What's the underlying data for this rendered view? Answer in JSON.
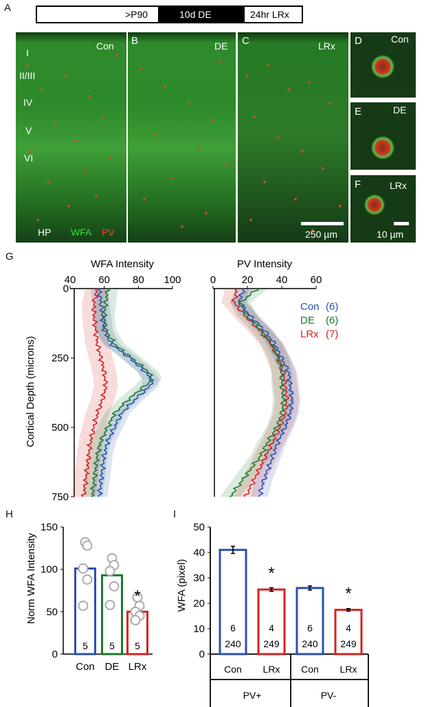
{
  "panel_labels": {
    "a": "A",
    "b": "B",
    "c": "C",
    "d": "D",
    "e": "E",
    "f": "F",
    "g": "G",
    "h": "H",
    "i": "I"
  },
  "timeline": {
    "p90": ">P90",
    "de": "10d DE",
    "lrx": "24hr LRx"
  },
  "micro": {
    "a_corner": "Con",
    "b_corner": "DE",
    "c_corner": "LRx",
    "layers": [
      "I",
      "II/III",
      "IV",
      "V",
      "VI"
    ],
    "hp": "HP",
    "wfa": "WFA",
    "pv": "PV",
    "scale_big": "250 µm",
    "scale_small": "10 µm",
    "d_corner": "Con",
    "e_corner": "DE",
    "f_corner": "LRx"
  },
  "colors": {
    "con": "#2a4fb4",
    "de": "#1a7a2c",
    "lrx": "#d62020",
    "wfa": "#22bb22",
    "pv": "#d62020"
  },
  "chart_data": [
    {
      "type": "line",
      "id": "wfa_profile",
      "title": "WFA Intensity",
      "ylabel": "Cortical Depth (microns)",
      "xlim": [
        40,
        100
      ],
      "xticks": [
        "40",
        "60",
        "80",
        "100"
      ],
      "ylim": [
        0,
        750
      ],
      "yticks": [
        "0",
        "250",
        "500",
        "750"
      ],
      "y_axis_inverted": true,
      "series": [
        {
          "name": "Con",
          "depth": [
            0,
            50,
            100,
            150,
            200,
            250,
            300,
            330,
            350,
            400,
            450,
            500,
            550,
            600,
            650,
            700,
            750
          ],
          "values": [
            57,
            58,
            59,
            60,
            64,
            75,
            84,
            88,
            87,
            78,
            70,
            66,
            62,
            60,
            59,
            58,
            57
          ]
        },
        {
          "name": "DE",
          "depth": [
            0,
            50,
            100,
            150,
            200,
            250,
            300,
            330,
            350,
            400,
            450,
            500,
            550,
            600,
            650,
            700,
            750
          ],
          "values": [
            62,
            61,
            60,
            61,
            66,
            76,
            86,
            88,
            84,
            74,
            66,
            62,
            58,
            56,
            55,
            54,
            53
          ]
        },
        {
          "name": "LRx",
          "depth": [
            0,
            50,
            100,
            150,
            200,
            250,
            300,
            350,
            400,
            450,
            500,
            550,
            600,
            650,
            700,
            750
          ],
          "values": [
            56,
            54,
            54,
            55,
            56,
            58,
            60,
            61,
            59,
            56,
            54,
            52,
            51,
            50,
            49,
            48
          ]
        }
      ]
    },
    {
      "type": "line",
      "id": "pv_profile",
      "title": "PV Intensity",
      "xlim": [
        0,
        60
      ],
      "xticks": [
        "0",
        "20",
        "40",
        "60"
      ],
      "ylim": [
        0,
        750
      ],
      "y_axis_inverted": true,
      "series": [
        {
          "name": "Con",
          "n": "(6)",
          "depth": [
            0,
            50,
            100,
            150,
            200,
            250,
            300,
            350,
            400,
            450,
            500,
            550,
            600,
            650,
            700,
            750
          ],
          "values": [
            18,
            15,
            22,
            30,
            36,
            40,
            44,
            45,
            46,
            45,
            42,
            38,
            35,
            32,
            29,
            27
          ]
        },
        {
          "name": "DE",
          "n": "(6)",
          "depth": [
            0,
            50,
            100,
            150,
            200,
            250,
            300,
            350,
            400,
            450,
            500,
            550,
            600,
            650,
            700,
            750
          ],
          "values": [
            26,
            16,
            20,
            28,
            34,
            38,
            40,
            40,
            41,
            40,
            37,
            32,
            28,
            22,
            16,
            10
          ]
        },
        {
          "name": "LRx",
          "n": "(7)",
          "depth": [
            0,
            50,
            100,
            150,
            200,
            250,
            300,
            350,
            400,
            450,
            500,
            550,
            600,
            650,
            700,
            750
          ],
          "values": [
            14,
            12,
            19,
            27,
            34,
            38,
            41,
            42,
            43,
            42,
            39,
            35,
            31,
            27,
            23,
            19
          ]
        }
      ]
    },
    {
      "type": "bar",
      "id": "norm_wfa",
      "ylabel": "Norm WFA Intensity",
      "categories": [
        "Con",
        "DE",
        "LRx"
      ],
      "values": [
        101,
        93,
        50
      ],
      "n": [
        "5",
        "5",
        "5"
      ],
      "ylim": [
        0,
        150
      ],
      "yticks": [
        "0",
        "50",
        "100",
        "150"
      ],
      "points": [
        [
          132,
          128,
          101,
          88,
          57
        ],
        [
          113,
          105,
          98,
          80,
          58
        ],
        [
          67,
          57,
          50,
          45,
          40
        ]
      ],
      "significance": [
        "",
        "",
        "*"
      ]
    },
    {
      "type": "bar",
      "id": "wfa_pixel",
      "ylabel": "WFA (pixel)",
      "categories": [
        "Con",
        "LRx",
        "Con",
        "LRx"
      ],
      "groups": [
        "PV+",
        "PV-"
      ],
      "values": [
        41,
        25.4,
        26,
        17.4
      ],
      "errors": [
        1.4,
        0.7,
        0.8,
        0.5
      ],
      "n_mice": [
        "6",
        "4",
        "6",
        "4"
      ],
      "n_cells": [
        "240",
        "249",
        "240",
        "249"
      ],
      "ylim": [
        0,
        50
      ],
      "yticks": [
        "0",
        "10",
        "20",
        "30",
        "40",
        "50"
      ],
      "significance": [
        "",
        "*",
        "",
        "*"
      ]
    }
  ]
}
